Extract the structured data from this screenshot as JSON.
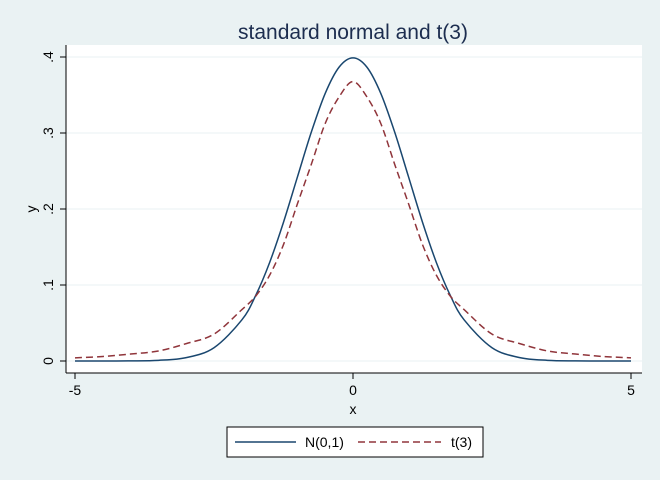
{
  "chart_data": {
    "type": "line",
    "title": "standard normal and t(3)",
    "xlabel": "x",
    "ylabel": "y",
    "xlim": [
      -5,
      5
    ],
    "ylim": [
      0,
      0.4
    ],
    "x_ticks": [
      -5,
      0,
      5
    ],
    "x_tick_labels": [
      "-5",
      "0",
      "5"
    ],
    "y_ticks": [
      0,
      0.1,
      0.2,
      0.3,
      0.4
    ],
    "y_tick_labels": [
      "0",
      ".1",
      ".2",
      ".3",
      ".4"
    ],
    "grid": true,
    "legend_position": "bottom",
    "series": [
      {
        "name": "N(0,1)",
        "style": "solid",
        "color": "#1a476f",
        "x": [
          -5,
          -4.5,
          -4,
          -3.5,
          -3,
          -2.5,
          -2,
          -1.75,
          -1.5,
          -1.25,
          -1,
          -0.75,
          -0.5,
          -0.25,
          0,
          0.25,
          0.5,
          0.75,
          1,
          1.25,
          1.5,
          1.75,
          2,
          2.5,
          3,
          3.5,
          4,
          4.5,
          5
        ],
        "y": [
          1.5e-06,
          1.6e-05,
          0.000134,
          0.000873,
          0.00443,
          0.0175,
          0.054,
          0.0863,
          0.1295,
          0.1826,
          0.242,
          0.3011,
          0.3521,
          0.3867,
          0.3989,
          0.3867,
          0.3521,
          0.3011,
          0.242,
          0.1826,
          0.1295,
          0.0863,
          0.054,
          0.0175,
          0.00443,
          0.000873,
          0.000134,
          1.6e-05,
          1.5e-06
        ]
      },
      {
        "name": "t(3)",
        "style": "dashed",
        "color": "#90353b",
        "x": [
          -5,
          -4.5,
          -4,
          -3.5,
          -3,
          -2.5,
          -2,
          -1.75,
          -1.5,
          -1.25,
          -1,
          -0.75,
          -0.5,
          -0.25,
          0,
          0.25,
          0.5,
          0.75,
          1,
          1.25,
          1.5,
          1.75,
          2,
          2.5,
          3,
          3.5,
          4,
          4.5,
          5
        ],
        "y": [
          0.00419,
          0.00592,
          0.00916,
          0.0132,
          0.0229,
          0.0354,
          0.0675,
          0.0854,
          0.1128,
          0.1532,
          0.2067,
          0.2587,
          0.3125,
          0.3475,
          0.3676,
          0.3475,
          0.3125,
          0.2587,
          0.2067,
          0.1532,
          0.1128,
          0.0854,
          0.0675,
          0.0354,
          0.0229,
          0.0132,
          0.00916,
          0.00592,
          0.00419
        ]
      }
    ]
  },
  "colors": {
    "background": "#eaf2f3",
    "plot_background": "#ffffff",
    "grid": "#eaf2f3",
    "title": "#1c2d4f"
  }
}
